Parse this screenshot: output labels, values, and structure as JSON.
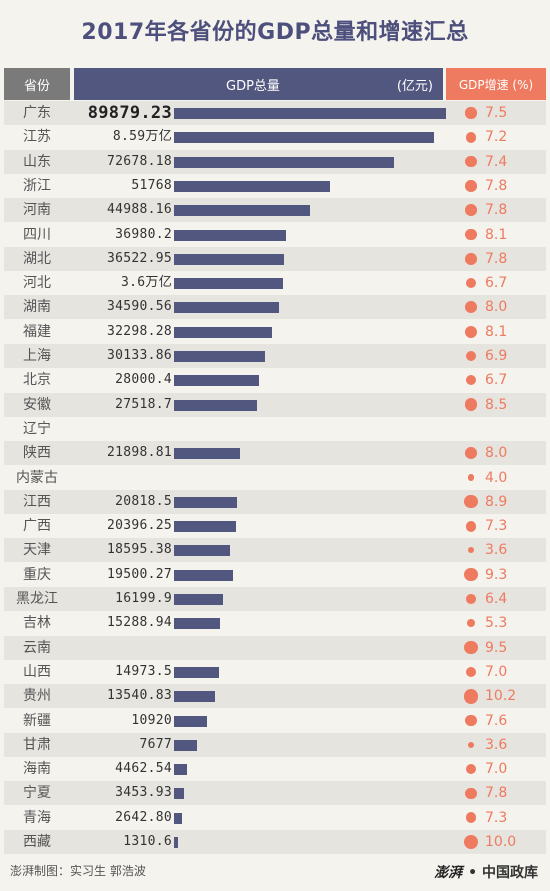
{
  "title": "2017年各省份的GDP总量和增速汇总",
  "headers": {
    "province": "省份",
    "gdp": "GDP总量",
    "unit": "(亿元)",
    "growth": "GDP增速 (%)"
  },
  "chart_data": {
    "type": "bar",
    "gdp_max": 90000,
    "rows": [
      {
        "province": "广东",
        "gdp_label": "89879.23",
        "gdp": 89879.23,
        "growth": 7.5,
        "emph": true
      },
      {
        "province": "江苏",
        "gdp_label": "8.59万亿",
        "gdp": 85900,
        "growth": 7.2
      },
      {
        "province": "山东",
        "gdp_label": "72678.18",
        "gdp": 72678.18,
        "growth": 7.4
      },
      {
        "province": "浙江",
        "gdp_label": "51768",
        "gdp": 51768,
        "growth": 7.8
      },
      {
        "province": "河南",
        "gdp_label": "44988.16",
        "gdp": 44988.16,
        "growth": 7.8
      },
      {
        "province": "四川",
        "gdp_label": "36980.2",
        "gdp": 36980.2,
        "growth": 8.1
      },
      {
        "province": "湖北",
        "gdp_label": "36522.95",
        "gdp": 36522.95,
        "growth": 7.8
      },
      {
        "province": "河北",
        "gdp_label": "3.6万亿",
        "gdp": 36000,
        "growth": 6.7
      },
      {
        "province": "湖南",
        "gdp_label": "34590.56",
        "gdp": 34590.56,
        "growth": 8.0
      },
      {
        "province": "福建",
        "gdp_label": "32298.28",
        "gdp": 32298.28,
        "growth": 8.1
      },
      {
        "province": "上海",
        "gdp_label": "30133.86",
        "gdp": 30133.86,
        "growth": 6.9
      },
      {
        "province": "北京",
        "gdp_label": "28000.4",
        "gdp": 28000.4,
        "growth": 6.7
      },
      {
        "province": "安徽",
        "gdp_label": "27518.7",
        "gdp": 27518.7,
        "growth": 8.5
      },
      {
        "province": "辽宁",
        "gdp_label": "",
        "gdp": null,
        "growth": null
      },
      {
        "province": "陕西",
        "gdp_label": "21898.81",
        "gdp": 21898.81,
        "growth": 8.0
      },
      {
        "province": "内蒙古",
        "gdp_label": "",
        "gdp": null,
        "growth": 4.0
      },
      {
        "province": "江西",
        "gdp_label": "20818.5",
        "gdp": 20818.5,
        "growth": 8.9
      },
      {
        "province": "广西",
        "gdp_label": "20396.25",
        "gdp": 20396.25,
        "growth": 7.3
      },
      {
        "province": "天津",
        "gdp_label": "18595.38",
        "gdp": 18595.38,
        "growth": 3.6
      },
      {
        "province": "重庆",
        "gdp_label": "19500.27",
        "gdp": 19500.27,
        "growth": 9.3
      },
      {
        "province": "黑龙江",
        "gdp_label": "16199.9",
        "gdp": 16199.9,
        "growth": 6.4
      },
      {
        "province": "吉林",
        "gdp_label": "15288.94",
        "gdp": 15288.94,
        "growth": 5.3
      },
      {
        "province": "云南",
        "gdp_label": "",
        "gdp": null,
        "growth": 9.5
      },
      {
        "province": "山西",
        "gdp_label": "14973.5",
        "gdp": 14973.5,
        "growth": 7.0
      },
      {
        "province": "贵州",
        "gdp_label": "13540.83",
        "gdp": 13540.83,
        "growth": 10.2
      },
      {
        "province": "新疆",
        "gdp_label": "10920",
        "gdp": 10920,
        "growth": 7.6
      },
      {
        "province": "甘肃",
        "gdp_label": "7677",
        "gdp": 7677,
        "growth": 3.6
      },
      {
        "province": "海南",
        "gdp_label": "4462.54",
        "gdp": 4462.54,
        "growth": 7.0
      },
      {
        "province": "宁夏",
        "gdp_label": "3453.93",
        "gdp": 3453.93,
        "growth": 7.8
      },
      {
        "province": "青海",
        "gdp_label": "2642.80",
        "gdp": 2642.8,
        "growth": 7.3
      },
      {
        "province": "西藏",
        "gdp_label": "1310.6",
        "gdp": 1310.6,
        "growth": 10.0
      }
    ]
  },
  "footer": {
    "credit": "澎湃制图：实习生 郭浩波",
    "brand": "澎湃",
    "brand_sub": "• 中国政库"
  }
}
